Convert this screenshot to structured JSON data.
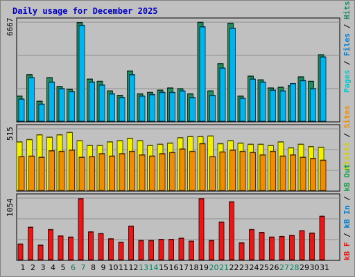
{
  "chart_data": [
    {
      "type": "bar",
      "title": "Daily usage for December 2025",
      "ylabel": "6667",
      "ylim": [
        0,
        6667
      ],
      "grid": true,
      "legend": "right",
      "categories": [
        "1",
        "2",
        "3",
        "4",
        "5",
        "6",
        "7",
        "8",
        "9",
        "10",
        "11",
        "12",
        "13",
        "14",
        "15",
        "16",
        "17",
        "18",
        "19",
        "20",
        "21",
        "22",
        "23",
        "24",
        "25",
        "26",
        "27",
        "28",
        "29",
        "30",
        "31"
      ],
      "series": [
        {
          "name": "Pages",
          "color": "#00c8c8",
          "values": [
            1700,
            3150,
            1350,
            2950,
            2350,
            2150,
            6680,
            2850,
            2700,
            2050,
            1750,
            3400,
            1850,
            1950,
            2100,
            2250,
            2200,
            1850,
            6700,
            2050,
            3900,
            6640,
            1700,
            3050,
            2800,
            2250,
            2300,
            2400,
            3000,
            2700,
            4500
          ]
        },
        {
          "name": "Files",
          "color": "#00b4f0",
          "values": [
            1500,
            2950,
            1150,
            2650,
            2200,
            2000,
            6500,
            2650,
            2450,
            1850,
            1600,
            3150,
            1700,
            1800,
            1950,
            1950,
            2050,
            1600,
            6400,
            1750,
            3600,
            6300,
            1550,
            2850,
            2650,
            2100,
            2050,
            2550,
            2750,
            2200,
            4350
          ]
        },
        {
          "name": "Hits",
          "color": "#208c60",
          "values": [
            1700,
            3150,
            1350,
            2950,
            2350,
            2150,
            6680,
            2850,
            2700,
            2050,
            1750,
            3400,
            1850,
            1950,
            2100,
            2250,
            2200,
            1850,
            6700,
            2050,
            3900,
            6640,
            1700,
            3050,
            2800,
            2250,
            2300,
            2400,
            3000,
            2700,
            4500
          ]
        }
      ]
    },
    {
      "type": "bar",
      "ylabel": "515",
      "ylim": [
        0,
        515
      ],
      "grid": true,
      "legend": "right",
      "categories": [
        "1",
        "2",
        "3",
        "4",
        "5",
        "6",
        "7",
        "8",
        "9",
        "10",
        "11",
        "12",
        "13",
        "14",
        "15",
        "16",
        "17",
        "18",
        "19",
        "20",
        "21",
        "22",
        "23",
        "24",
        "25",
        "26",
        "27",
        "28",
        "29",
        "30",
        "31"
      ],
      "series": [
        {
          "name": "Visits",
          "color": "#f0f000",
          "values": [
            410,
            430,
            470,
            450,
            470,
            490,
            420,
            380,
            380,
            410,
            420,
            440,
            420,
            380,
            390,
            400,
            445,
            455,
            455,
            460,
            395,
            420,
            400,
            390,
            390,
            380,
            410,
            360,
            390,
            370,
            365
          ]
        },
        {
          "name": "Sites",
          "color": "#f08c00",
          "values": [
            285,
            290,
            280,
            335,
            330,
            340,
            280,
            285,
            310,
            290,
            310,
            330,
            300,
            290,
            310,
            320,
            350,
            330,
            395,
            285,
            325,
            340,
            330,
            320,
            300,
            330,
            290,
            300,
            280,
            270,
            255
          ]
        }
      ]
    },
    {
      "type": "bar",
      "ylabel": "1054",
      "ylim": [
        0,
        1054
      ],
      "grid": true,
      "legend": "right",
      "categories": [
        "1",
        "2",
        "3",
        "4",
        "5",
        "6",
        "7",
        "8",
        "9",
        "10",
        "11",
        "12",
        "13",
        "14",
        "15",
        "16",
        "17",
        "18",
        "19",
        "20",
        "21",
        "22",
        "23",
        "24",
        "25",
        "26",
        "27",
        "28",
        "29",
        "30",
        "31"
      ],
      "series": [
        {
          "name": "KB F",
          "color": "#e81818",
          "values": [
            270,
            560,
            250,
            520,
            410,
            390,
            1054,
            480,
            450,
            360,
            300,
            580,
            330,
            330,
            350,
            350,
            370,
            320,
            1054,
            330,
            650,
            1000,
            290,
            520,
            470,
            390,
            400,
            420,
            500,
            460,
            750
          ]
        }
      ]
    }
  ],
  "axis_labels": {
    "days": [
      "1",
      "2",
      "3",
      "4",
      "5",
      "6",
      "7",
      "8",
      "9",
      "10",
      "11",
      "12",
      "13",
      "14",
      "15",
      "16",
      "17",
      "18",
      "19",
      "20",
      "21",
      "22",
      "23",
      "24",
      "25",
      "26",
      "27",
      "28",
      "29",
      "30",
      "31"
    ],
    "weekend_days": [
      "6",
      "7",
      "13",
      "14",
      "20",
      "21",
      "27",
      "28"
    ],
    "weekday_color": "#000000",
    "weekend_color": "#008060"
  },
  "legend_top": [
    {
      "text": "Pages",
      "color": "#00c8c8"
    },
    {
      "text": " / ",
      "color": "#000000"
    },
    {
      "text": "Files",
      "color": "#0080d0"
    },
    {
      "text": " / ",
      "color": "#000000"
    },
    {
      "text": "Hits",
      "color": "#208c60"
    }
  ],
  "legend_mid": [
    {
      "text": "Visits",
      "color": "#d0d000"
    },
    {
      "text": " / ",
      "color": "#000000"
    },
    {
      "text": "Sites",
      "color": "#f08c00"
    }
  ],
  "legend_bot": [
    {
      "text": "kB F",
      "color": "#e81818"
    },
    {
      "text": " / ",
      "color": "#000000"
    },
    {
      "text": "kB In",
      "color": "#0080d0"
    },
    {
      "text": " / ",
      "color": "#000000"
    },
    {
      "text": "kB Out",
      "color": "#10a040"
    }
  ]
}
